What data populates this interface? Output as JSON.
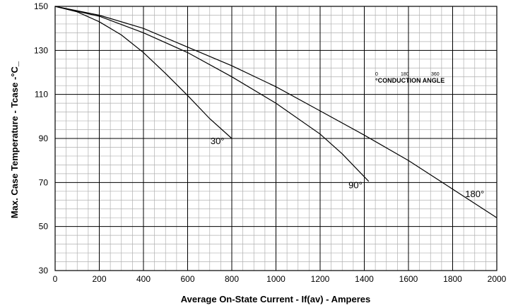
{
  "chart_data": {
    "type": "line",
    "title": "",
    "xlabel": "Average On-State Current - If(av) - Amperes",
    "ylabel": "Max. Case Temperature - Tcase -°C_",
    "xlim": [
      0,
      2000
    ],
    "ylim": [
      30,
      150
    ],
    "x_ticks": [
      0,
      200,
      400,
      600,
      800,
      1000,
      1200,
      1400,
      1600,
      1800,
      2000
    ],
    "y_ticks": [
      30,
      50,
      70,
      90,
      110,
      130,
      150
    ],
    "x_tick_labels": [
      "0",
      "200",
      "400",
      "600",
      "800",
      "1000",
      "1200",
      "1400",
      "1600",
      "1800",
      "2000"
    ],
    "y_tick_labels": [
      "30",
      "50",
      "70",
      "90",
      "110",
      "130",
      "150"
    ],
    "grid": true,
    "minor_grid_steps": {
      "x": 50,
      "y": 4
    },
    "series": [
      {
        "name": "30°",
        "points": [
          [
            0,
            150
          ],
          [
            100,
            147.5
          ],
          [
            200,
            143
          ],
          [
            300,
            137
          ],
          [
            400,
            129
          ],
          [
            500,
            119.5
          ],
          [
            600,
            109.5
          ],
          [
            700,
            99
          ],
          [
            800,
            90
          ]
        ]
      },
      {
        "name": "90°",
        "points": [
          [
            0,
            150
          ],
          [
            200,
            145.5
          ],
          [
            400,
            138
          ],
          [
            600,
            129
          ],
          [
            800,
            118
          ],
          [
            1000,
            106
          ],
          [
            1200,
            92
          ],
          [
            1300,
            83
          ],
          [
            1420,
            70.5
          ]
        ]
      },
      {
        "name": "180°",
        "points": [
          [
            0,
            150
          ],
          [
            200,
            146
          ],
          [
            400,
            140
          ],
          [
            600,
            131.5
          ],
          [
            800,
            123
          ],
          [
            1000,
            113.5
          ],
          [
            1200,
            102.5
          ],
          [
            1400,
            91.5
          ],
          [
            1600,
            80
          ],
          [
            1800,
            67
          ],
          [
            2000,
            54
          ]
        ]
      }
    ],
    "curve_labels": [
      {
        "text": "30°",
        "x": 735,
        "y": 89
      },
      {
        "text": "90°",
        "x": 1360,
        "y": 69
      },
      {
        "text": "180°",
        "x": 1900,
        "y": 65
      }
    ],
    "inset": {
      "labels": [
        "0",
        "180",
        "360"
      ],
      "caption": "°CONDUCTION ANGLE"
    }
  }
}
